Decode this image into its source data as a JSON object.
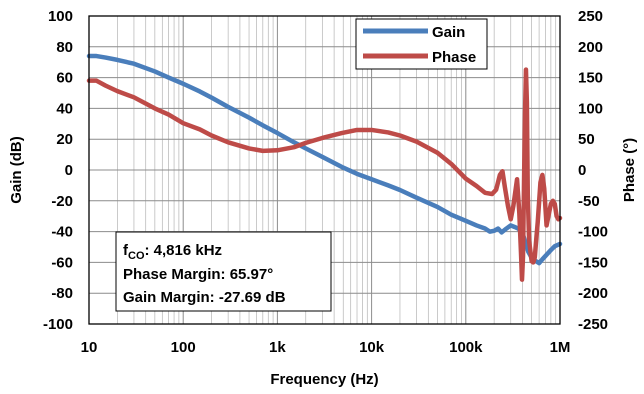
{
  "chart_data": {
    "type": "line",
    "xlabel": "Frequency (Hz)",
    "ylabel": "Gain (dB)",
    "y2label": "Phase (°)",
    "xscale": "log",
    "xlim": [
      10,
      1000000
    ],
    "ylim": [
      -100,
      100
    ],
    "y2lim": [
      -250,
      250
    ],
    "grid": true,
    "legend_position": "top-right",
    "x_ticks": [
      {
        "value": 10,
        "label": "10"
      },
      {
        "value": 100,
        "label": "100"
      },
      {
        "value": 1000,
        "label": "1k"
      },
      {
        "value": 10000,
        "label": "10k"
      },
      {
        "value": 100000,
        "label": "100k"
      },
      {
        "value": 1000000,
        "label": "1M"
      }
    ],
    "y_ticks": [
      "100",
      "80",
      "60",
      "40",
      "20",
      "0",
      "-20",
      "-40",
      "-60",
      "-80",
      "-100"
    ],
    "y2_ticks": [
      "250",
      "200",
      "150",
      "100",
      "50",
      "0",
      "-50",
      "-100",
      "-150",
      "-200",
      "-250"
    ],
    "series": [
      {
        "name": "Gain",
        "axis": "left",
        "color": "#4a7ebb",
        "points": [
          [
            10,
            74
          ],
          [
            12,
            74
          ],
          [
            15,
            73
          ],
          [
            20,
            71.5
          ],
          [
            30,
            69
          ],
          [
            50,
            64
          ],
          [
            70,
            60
          ],
          [
            100,
            56
          ],
          [
            150,
            51
          ],
          [
            200,
            47
          ],
          [
            300,
            41
          ],
          [
            500,
            34
          ],
          [
            700,
            29
          ],
          [
            1000,
            24
          ],
          [
            1500,
            18
          ],
          [
            2000,
            14
          ],
          [
            3000,
            8.5
          ],
          [
            4816,
            2
          ],
          [
            7000,
            -2.5
          ],
          [
            10000,
            -6
          ],
          [
            15000,
            -10
          ],
          [
            20000,
            -13
          ],
          [
            30000,
            -18
          ],
          [
            50000,
            -24
          ],
          [
            70000,
            -29
          ],
          [
            100000,
            -33
          ],
          [
            130000,
            -36
          ],
          [
            160000,
            -38
          ],
          [
            180000,
            -40
          ],
          [
            200000,
            -39.5
          ],
          [
            220000,
            -38
          ],
          [
            240000,
            -40.5
          ],
          [
            270000,
            -38
          ],
          [
            300000,
            -36
          ],
          [
            330000,
            -37
          ],
          [
            360000,
            -38
          ],
          [
            400000,
            -41
          ],
          [
            430000,
            -47
          ],
          [
            460000,
            -53
          ],
          [
            500000,
            -57
          ],
          [
            550000,
            -59
          ],
          [
            600000,
            -60.5
          ],
          [
            650000,
            -58
          ],
          [
            720000,
            -55
          ],
          [
            800000,
            -52
          ],
          [
            880000,
            -49.5
          ],
          [
            1000000,
            -48
          ]
        ]
      },
      {
        "name": "Phase",
        "axis": "right",
        "color": "#be4b48",
        "points": [
          [
            10,
            145
          ],
          [
            12,
            145
          ],
          [
            15,
            137
          ],
          [
            20,
            128
          ],
          [
            30,
            118
          ],
          [
            50,
            100
          ],
          [
            70,
            90
          ],
          [
            100,
            76
          ],
          [
            150,
            66
          ],
          [
            200,
            56
          ],
          [
            300,
            45
          ],
          [
            500,
            35
          ],
          [
            700,
            31
          ],
          [
            1000,
            32
          ],
          [
            1500,
            37
          ],
          [
            2000,
            44
          ],
          [
            3000,
            52
          ],
          [
            4816,
            60
          ],
          [
            7000,
            65
          ],
          [
            10000,
            65
          ],
          [
            15000,
            61
          ],
          [
            20000,
            56
          ],
          [
            30000,
            46
          ],
          [
            50000,
            28
          ],
          [
            70000,
            10
          ],
          [
            100000,
            -14
          ],
          [
            130000,
            -26
          ],
          [
            160000,
            -37
          ],
          [
            190000,
            -39
          ],
          [
            210000,
            -32
          ],
          [
            230000,
            -8
          ],
          [
            245000,
            -2
          ],
          [
            260000,
            -28
          ],
          [
            280000,
            -58
          ],
          [
            300000,
            -80
          ],
          [
            320000,
            -58
          ],
          [
            350000,
            -15
          ],
          [
            370000,
            -70
          ],
          [
            385000,
            -133
          ],
          [
            395000,
            -178
          ],
          [
            405000,
            -140
          ],
          [
            415000,
            -20
          ],
          [
            425000,
            90
          ],
          [
            435000,
            163
          ],
          [
            445000,
            110
          ],
          [
            455000,
            -40
          ],
          [
            470000,
            -115
          ],
          [
            500000,
            -148
          ],
          [
            520000,
            -150
          ],
          [
            540000,
            -142
          ],
          [
            560000,
            -112
          ],
          [
            580000,
            -85
          ],
          [
            620000,
            -20
          ],
          [
            650000,
            -8
          ],
          [
            680000,
            -30
          ],
          [
            720000,
            -90
          ],
          [
            760000,
            -72
          ],
          [
            800000,
            -55
          ],
          [
            840000,
            -50
          ],
          [
            880000,
            -55
          ],
          [
            920000,
            -75
          ],
          [
            960000,
            -80
          ],
          [
            1000000,
            -78
          ]
        ]
      }
    ],
    "annotation": {
      "lines": [
        {
          "prefix": "f",
          "subscript": "CO",
          "text": ": 4,816 kHz"
        },
        {
          "text": "Phase Margin: 65.97°"
        },
        {
          "text": "Gain Margin: -27.69 dB"
        }
      ]
    }
  }
}
